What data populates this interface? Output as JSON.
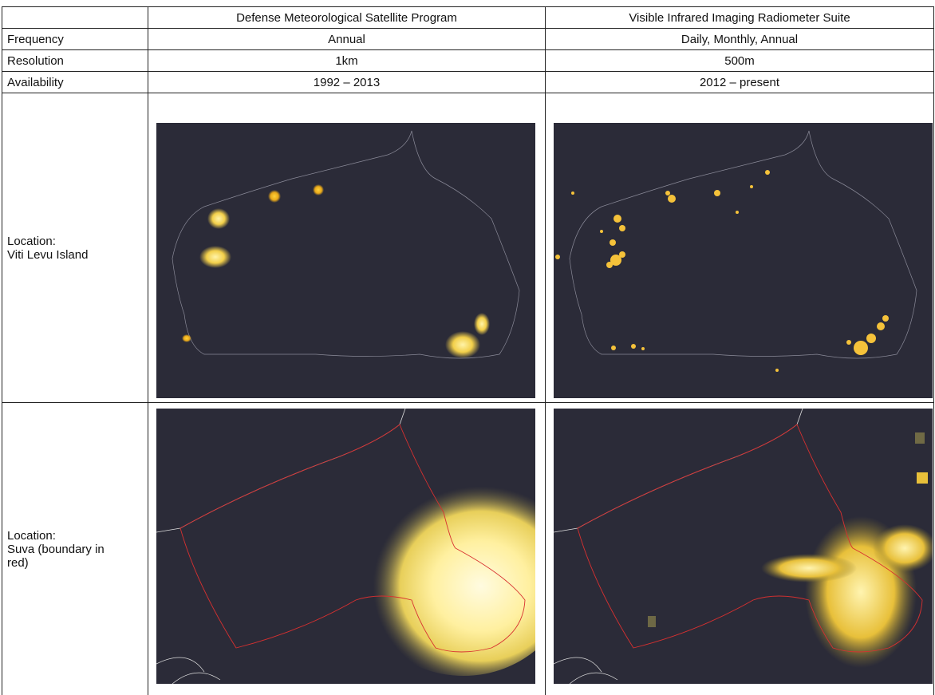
{
  "table": {
    "columns": [
      "Defense Meteorological Satellite Program",
      "Visible Infrared Imaging Radiometer Suite"
    ],
    "rows": [
      [
        "Frequency",
        "Annual",
        "Daily, Monthly, Annual"
      ],
      [
        "Resolution",
        "1km",
        "500m"
      ],
      [
        "Availability",
        "1992 – 2013",
        "2012 – present"
      ]
    ],
    "image_rows": [
      {
        "label": "Location:",
        "place": "Viti Levu Island"
      },
      {
        "label": "Location:",
        "place": "Suva (boundary in red)"
      }
    ]
  }
}
